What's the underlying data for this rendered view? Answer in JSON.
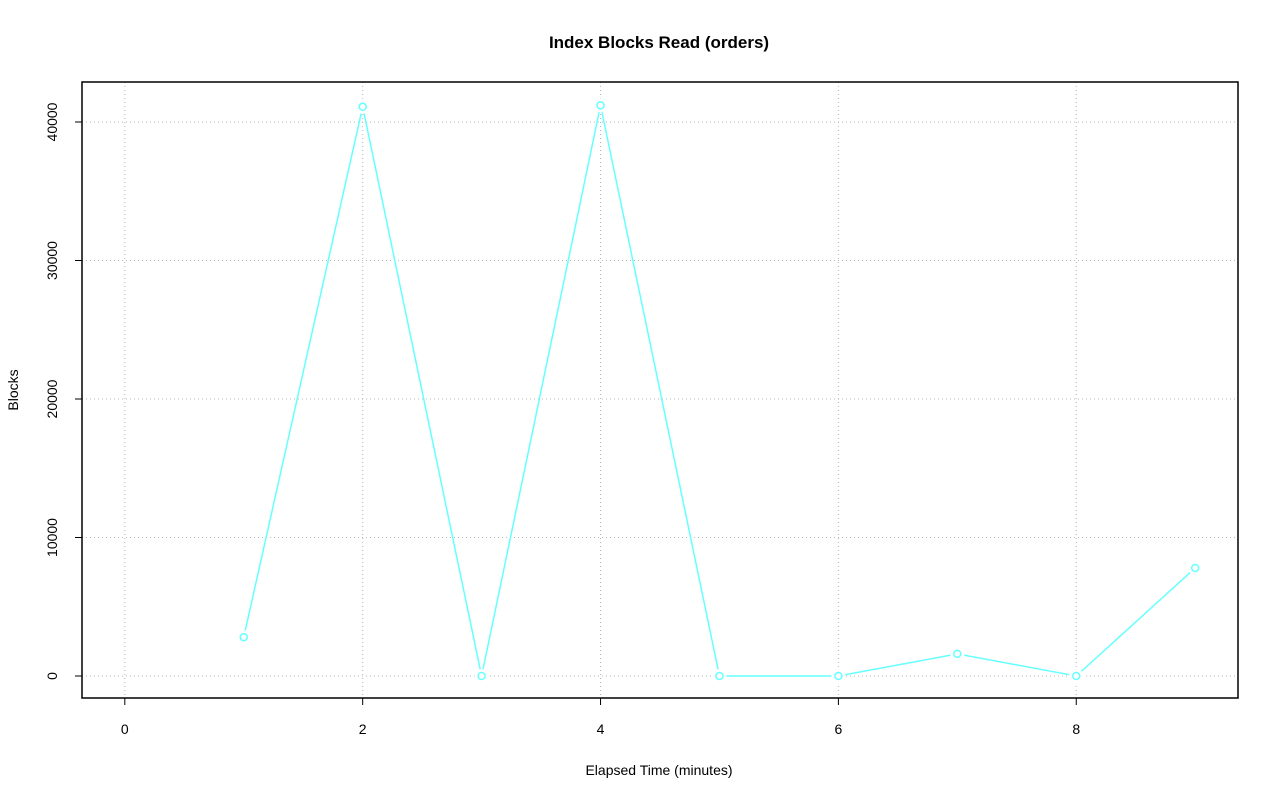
{
  "chart_data": {
    "type": "line",
    "title": "Index Blocks Read (orders)",
    "x_label": "Elapsed Time (minutes)",
    "y_label": "Blocks",
    "x": [
      1,
      2,
      3,
      4,
      5,
      6,
      7,
      8,
      9
    ],
    "series": [
      {
        "name": "orders",
        "color": "#66ffff",
        "values": [
          2800,
          41100,
          0,
          41200,
          0,
          0,
          1600,
          0,
          7800
        ]
      }
    ],
    "xlim": [
      -0.36,
      9.36
    ],
    "xticks": [
      0,
      2,
      4,
      6,
      8
    ],
    "ylim": [
      -1588,
      42888
    ],
    "yticks": [
      0,
      10000,
      20000,
      30000,
      40000
    ],
    "grid": true
  }
}
